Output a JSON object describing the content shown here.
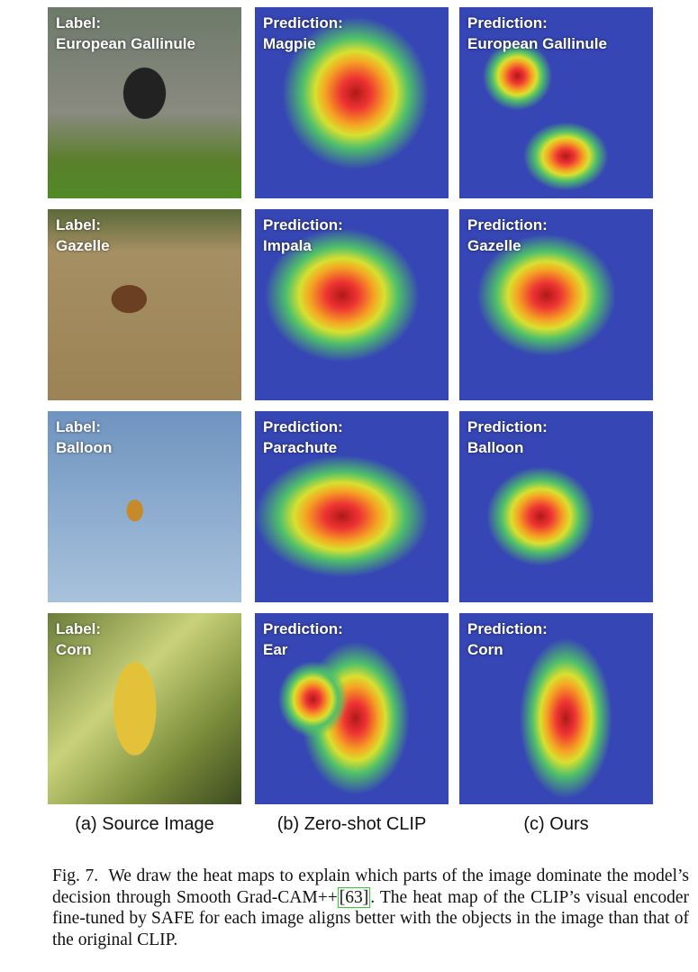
{
  "grid": {
    "rows": [
      {
        "cells": [
          {
            "heading": "Label:",
            "name": "European Gallinule"
          },
          {
            "heading": "Prediction:",
            "name": "Magpie"
          },
          {
            "heading": "Prediction:",
            "name": "European Gallinule"
          }
        ]
      },
      {
        "cells": [
          {
            "heading": "Label:",
            "name": "Gazelle"
          },
          {
            "heading": "Prediction:",
            "name": "Impala"
          },
          {
            "heading": "Prediction:",
            "name": "Gazelle"
          }
        ]
      },
      {
        "cells": [
          {
            "heading": "Label:",
            "name": "Balloon"
          },
          {
            "heading": "Prediction:",
            "name": "Parachute"
          },
          {
            "heading": "Prediction:",
            "name": "Balloon"
          }
        ]
      },
      {
        "cells": [
          {
            "heading": "Label:",
            "name": "Corn"
          },
          {
            "heading": "Prediction:",
            "name": "Ear"
          },
          {
            "heading": "Prediction:",
            "name": "Corn"
          }
        ]
      }
    ]
  },
  "columns": [
    "(a) Source Image",
    "(b) Zero-shot CLIP",
    "(c) Ours"
  ],
  "caption": {
    "prefix": "Fig. 7.",
    "before": "We draw the heat maps to explain which parts of the image dominate the model’s decision through Smooth Grad-CAM++",
    "citation": "[63]",
    "after": ". The heat map of the CLIP’s visual encoder fine-tuned by SAFE for each image aligns better with the objects in the image than that of the original CLIP."
  }
}
